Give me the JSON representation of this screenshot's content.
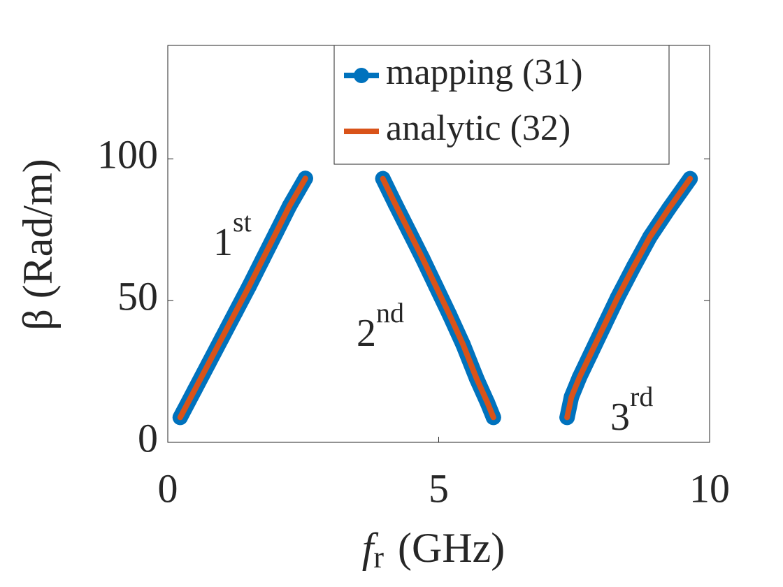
{
  "chart_data": {
    "type": "line",
    "x_label": {
      "main": "f",
      "sub": "r",
      "unit": "(GHz)"
    },
    "y_label": "β (Rad/m)",
    "xlim": [
      0,
      10
    ],
    "ylim": [
      0,
      140
    ],
    "xticks": [
      0,
      5,
      10
    ],
    "yticks": [
      0,
      50,
      100
    ],
    "legend": "top-right",
    "series": [
      {
        "name": "mapping (31)",
        "color": "#0072BD",
        "markers": true,
        "x": [
          0.23,
          0.5,
          0.75,
          1.0,
          1.25,
          1.5,
          1.75,
          2.0,
          2.25,
          2.54,
          null,
          3.97,
          4.2,
          4.45,
          4.7,
          4.95,
          5.2,
          5.45,
          5.7,
          5.9,
          6.01,
          null,
          7.37,
          7.45,
          7.6,
          7.8,
          8.05,
          8.3,
          8.6,
          8.9,
          9.25,
          9.64
        ],
        "values": [
          8.8,
          18.6,
          27.7,
          36.8,
          45.9,
          55,
          64.5,
          74,
          83.5,
          93.1,
          null,
          93,
          84,
          74.5,
          65,
          55,
          45,
          34.5,
          22.5,
          14,
          8.8,
          null,
          8.8,
          16,
          23,
          31,
          41,
          51,
          62,
          72.5,
          82.5,
          93
        ]
      },
      {
        "name": "analytic (32)",
        "color": "#D95319",
        "markers": false,
        "x": [
          0.23,
          0.5,
          0.75,
          1.0,
          1.25,
          1.5,
          1.75,
          2.0,
          2.25,
          2.54,
          null,
          3.97,
          4.2,
          4.45,
          4.7,
          4.95,
          5.2,
          5.45,
          5.7,
          5.9,
          6.01,
          null,
          7.37,
          7.45,
          7.6,
          7.8,
          8.05,
          8.3,
          8.6,
          8.9,
          9.25,
          9.64
        ],
        "values": [
          8.8,
          18.6,
          27.7,
          36.8,
          45.9,
          55,
          64.5,
          74,
          83.5,
          93.1,
          null,
          93,
          84,
          74.5,
          65,
          55,
          45,
          34.5,
          22.5,
          14,
          8.8,
          null,
          8.8,
          16,
          23,
          31,
          41,
          51,
          62,
          72.5,
          82.5,
          93
        ]
      }
    ],
    "annotations": [
      {
        "text": "1",
        "sup": "st"
      },
      {
        "text": "2",
        "sup": "nd"
      },
      {
        "text": "3",
        "sup": "rd"
      }
    ]
  }
}
